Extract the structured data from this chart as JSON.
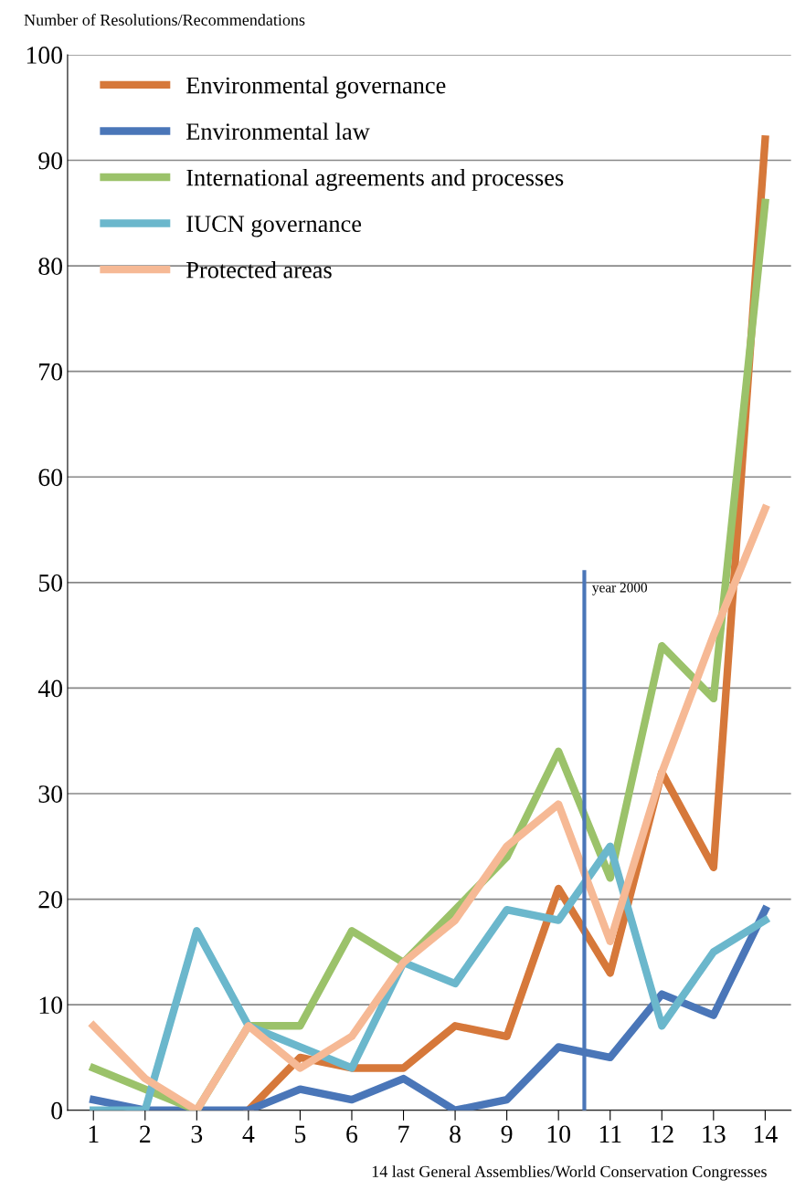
{
  "chart_data": {
    "type": "line",
    "ylabel": "Number of Resolutions/Recommendations",
    "xlabel": "14 last General Assemblies/World Conservation Congresses",
    "categories": [
      "1",
      "2",
      "3",
      "4",
      "5",
      "6",
      "7",
      "8",
      "9",
      "10",
      "11",
      "12",
      "13",
      "14"
    ],
    "ylim": [
      0,
      100
    ],
    "yticks": [
      0,
      10,
      20,
      30,
      40,
      50,
      60,
      70,
      80,
      90,
      100
    ],
    "grid": "y",
    "legend": "top left",
    "marker": "none",
    "line_style": "solid",
    "series": [
      {
        "name": "Environmental governance",
        "color": "#d6783a",
        "values": [
          null,
          null,
          null,
          0,
          5,
          4,
          4,
          8,
          7,
          21,
          13,
          32,
          23,
          92
        ]
      },
      {
        "name": "Environmental law",
        "color": "#4a76b8",
        "values": [
          1,
          0,
          0,
          0,
          2,
          1,
          3,
          0,
          1,
          6,
          5,
          11,
          9,
          19
        ]
      },
      {
        "name": "International agreements and processes",
        "color": "#9bc26a",
        "values": [
          4,
          2,
          0,
          8,
          8,
          17,
          14,
          19,
          24,
          34,
          22,
          44,
          39,
          86
        ]
      },
      {
        "name": "IUCN governance",
        "color": "#6bb7cc",
        "values": [
          0,
          0,
          17,
          8,
          6,
          4,
          14,
          12,
          19,
          18,
          25,
          8,
          15,
          18
        ]
      },
      {
        "name": "Protected areas",
        "color": "#f6b995",
        "values": [
          8,
          3,
          0,
          8,
          4,
          7,
          14,
          18,
          25,
          29,
          16,
          32,
          45,
          57
        ]
      }
    ],
    "ref_lines": [
      {
        "axis": "x",
        "value": "11",
        "label": "year 2000",
        "color": "#4a76b8",
        "line_style": "solid"
      }
    ]
  }
}
